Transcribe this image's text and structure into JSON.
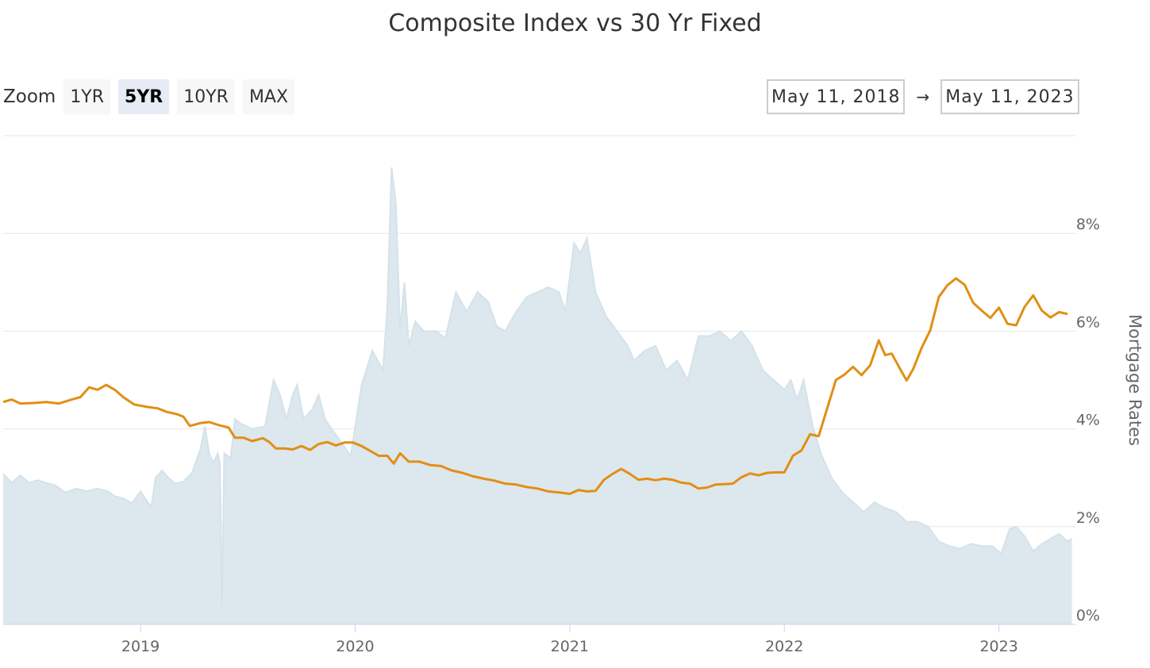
{
  "chart_data": {
    "type": "line",
    "title": "Composite Index vs 30 Yr Fixed",
    "zoom": {
      "label": "Zoom",
      "buttons": [
        {
          "label": "1YR",
          "active": false
        },
        {
          "label": "5YR",
          "active": true
        },
        {
          "label": "10YR",
          "active": false
        },
        {
          "label": "MAX",
          "active": false
        }
      ]
    },
    "range": {
      "from": "May 11, 2018",
      "arrow": "→",
      "to": "May 11, 2023"
    },
    "x_axis": {
      "start": 2018.36,
      "end": 2023.36,
      "ticks": [
        {
          "value": 2019,
          "label": "2019"
        },
        {
          "value": 2020,
          "label": "2020"
        },
        {
          "value": 2021,
          "label": "2021"
        },
        {
          "value": 2022,
          "label": "2022"
        },
        {
          "value": 2023,
          "label": "2023"
        }
      ]
    },
    "y_axis": {
      "label": "Mortgage Rates",
      "position": "right",
      "ylim": [
        0,
        10
      ],
      "ticks": [
        {
          "value": 0,
          "label": "0%"
        },
        {
          "value": 2,
          "label": "2%"
        },
        {
          "value": 4,
          "label": "4%"
        },
        {
          "value": 6,
          "label": "6%"
        },
        {
          "value": 8,
          "label": "8%"
        }
      ]
    },
    "grid": true,
    "legend": "none",
    "colors": {
      "area_fill": "#dde7ee",
      "area_line": "#d5e2ea",
      "rate_line": "#e08f13",
      "grid": "#e6e6e6"
    },
    "series": [
      {
        "type": "area",
        "points": [
          [
            2018.36,
            3.08
          ],
          [
            2018.4,
            2.9
          ],
          [
            2018.44,
            3.05
          ],
          [
            2018.48,
            2.9
          ],
          [
            2018.52,
            2.95
          ],
          [
            2018.56,
            2.9
          ],
          [
            2018.6,
            2.85
          ],
          [
            2018.65,
            2.7
          ],
          [
            2018.7,
            2.78
          ],
          [
            2018.75,
            2.72
          ],
          [
            2018.8,
            2.78
          ],
          [
            2018.85,
            2.72
          ],
          [
            2018.88,
            2.62
          ],
          [
            2018.92,
            2.58
          ],
          [
            2018.96,
            2.48
          ],
          [
            2019.0,
            2.72
          ],
          [
            2019.03,
            2.52
          ],
          [
            2019.05,
            2.4
          ],
          [
            2019.07,
            3.0
          ],
          [
            2019.1,
            3.15
          ],
          [
            2019.13,
            3.0
          ],
          [
            2019.16,
            2.88
          ],
          [
            2019.2,
            2.92
          ],
          [
            2019.24,
            3.1
          ],
          [
            2019.28,
            3.6
          ],
          [
            2019.3,
            4.05
          ],
          [
            2019.32,
            3.5
          ],
          [
            2019.34,
            3.3
          ],
          [
            2019.36,
            3.5
          ],
          [
            2019.37,
            3.3
          ],
          [
            2019.38,
            0.35
          ],
          [
            2019.39,
            3.5
          ],
          [
            2019.42,
            3.4
          ],
          [
            2019.44,
            4.2
          ],
          [
            2019.47,
            4.1
          ],
          [
            2019.52,
            4.0
          ],
          [
            2019.58,
            4.05
          ],
          [
            2019.62,
            5.0
          ],
          [
            2019.65,
            4.7
          ],
          [
            2019.68,
            4.2
          ],
          [
            2019.71,
            4.7
          ],
          [
            2019.73,
            4.9
          ],
          [
            2019.76,
            4.2
          ],
          [
            2019.8,
            4.4
          ],
          [
            2019.83,
            4.7
          ],
          [
            2019.86,
            4.2
          ],
          [
            2019.89,
            4.0
          ],
          [
            2019.93,
            3.75
          ],
          [
            2019.98,
            3.45
          ],
          [
            2020.03,
            4.9
          ],
          [
            2020.08,
            5.6
          ],
          [
            2020.13,
            5.2
          ],
          [
            2020.15,
            6.5
          ],
          [
            2020.17,
            9.35
          ],
          [
            2020.19,
            8.6
          ],
          [
            2020.21,
            6.0
          ],
          [
            2020.23,
            7.0
          ],
          [
            2020.25,
            5.7
          ],
          [
            2020.28,
            6.2
          ],
          [
            2020.32,
            6.0
          ],
          [
            2020.38,
            6.0
          ],
          [
            2020.42,
            5.85
          ],
          [
            2020.47,
            6.8
          ],
          [
            2020.52,
            6.4
          ],
          [
            2020.57,
            6.8
          ],
          [
            2020.62,
            6.6
          ],
          [
            2020.66,
            6.1
          ],
          [
            2020.7,
            6.0
          ],
          [
            2020.75,
            6.4
          ],
          [
            2020.8,
            6.7
          ],
          [
            2020.85,
            6.8
          ],
          [
            2020.9,
            6.9
          ],
          [
            2020.95,
            6.8
          ],
          [
            2020.98,
            6.4
          ],
          [
            2021.02,
            7.8
          ],
          [
            2021.05,
            7.6
          ],
          [
            2021.08,
            7.9
          ],
          [
            2021.12,
            6.8
          ],
          [
            2021.17,
            6.3
          ],
          [
            2021.22,
            6.0
          ],
          [
            2021.27,
            5.7
          ],
          [
            2021.3,
            5.4
          ],
          [
            2021.35,
            5.6
          ],
          [
            2021.4,
            5.7
          ],
          [
            2021.45,
            5.2
          ],
          [
            2021.5,
            5.4
          ],
          [
            2021.55,
            5.0
          ],
          [
            2021.6,
            5.9
          ],
          [
            2021.65,
            5.9
          ],
          [
            2021.7,
            6.0
          ],
          [
            2021.75,
            5.8
          ],
          [
            2021.8,
            6.0
          ],
          [
            2021.85,
            5.7
          ],
          [
            2021.9,
            5.2
          ],
          [
            2021.95,
            5.0
          ],
          [
            2022.0,
            4.8
          ],
          [
            2022.03,
            5.0
          ],
          [
            2022.06,
            4.6
          ],
          [
            2022.09,
            5.0
          ],
          [
            2022.13,
            4.1
          ],
          [
            2022.17,
            3.5
          ],
          [
            2022.22,
            3.0
          ],
          [
            2022.27,
            2.7
          ],
          [
            2022.32,
            2.5
          ],
          [
            2022.37,
            2.3
          ],
          [
            2022.42,
            2.5
          ],
          [
            2022.46,
            2.4
          ],
          [
            2022.52,
            2.3
          ],
          [
            2022.57,
            2.1
          ],
          [
            2022.62,
            2.1
          ],
          [
            2022.67,
            2.0
          ],
          [
            2022.72,
            1.7
          ],
          [
            2022.77,
            1.6
          ],
          [
            2022.82,
            1.55
          ],
          [
            2022.87,
            1.65
          ],
          [
            2022.92,
            1.6
          ],
          [
            2022.97,
            1.6
          ],
          [
            2023.01,
            1.45
          ],
          [
            2023.05,
            1.95
          ],
          [
            2023.08,
            2.0
          ],
          [
            2023.12,
            1.8
          ],
          [
            2023.16,
            1.5
          ],
          [
            2023.2,
            1.65
          ],
          [
            2023.24,
            1.75
          ],
          [
            2023.28,
            1.85
          ],
          [
            2023.32,
            1.7
          ],
          [
            2023.34,
            1.75
          ]
        ]
      },
      {
        "type": "line",
        "points": [
          [
            2018.36,
            4.55
          ],
          [
            2018.4,
            4.6
          ],
          [
            2018.44,
            4.52
          ],
          [
            2018.5,
            4.53
          ],
          [
            2018.56,
            4.55
          ],
          [
            2018.62,
            4.52
          ],
          [
            2018.68,
            4.6
          ],
          [
            2018.72,
            4.65
          ],
          [
            2018.76,
            4.85
          ],
          [
            2018.8,
            4.8
          ],
          [
            2018.84,
            4.9
          ],
          [
            2018.88,
            4.8
          ],
          [
            2018.92,
            4.65
          ],
          [
            2018.97,
            4.5
          ],
          [
            2019.03,
            4.45
          ],
          [
            2019.08,
            4.42
          ],
          [
            2019.12,
            4.35
          ],
          [
            2019.17,
            4.3
          ],
          [
            2019.2,
            4.25
          ],
          [
            2019.23,
            4.06
          ],
          [
            2019.28,
            4.12
          ],
          [
            2019.32,
            4.14
          ],
          [
            2019.37,
            4.07
          ],
          [
            2019.41,
            4.03
          ],
          [
            2019.44,
            3.82
          ],
          [
            2019.48,
            3.82
          ],
          [
            2019.52,
            3.75
          ],
          [
            2019.57,
            3.81
          ],
          [
            2019.6,
            3.73
          ],
          [
            2019.63,
            3.6
          ],
          [
            2019.67,
            3.6
          ],
          [
            2019.71,
            3.58
          ],
          [
            2019.75,
            3.65
          ],
          [
            2019.79,
            3.57
          ],
          [
            2019.83,
            3.69
          ],
          [
            2019.87,
            3.73
          ],
          [
            2019.91,
            3.66
          ],
          [
            2019.95,
            3.72
          ],
          [
            2019.99,
            3.72
          ],
          [
            2020.03,
            3.65
          ],
          [
            2020.07,
            3.55
          ],
          [
            2020.11,
            3.45
          ],
          [
            2020.15,
            3.45
          ],
          [
            2020.18,
            3.29
          ],
          [
            2020.21,
            3.5
          ],
          [
            2020.25,
            3.33
          ],
          [
            2020.3,
            3.33
          ],
          [
            2020.35,
            3.26
          ],
          [
            2020.4,
            3.24
          ],
          [
            2020.45,
            3.15
          ],
          [
            2020.5,
            3.1
          ],
          [
            2020.55,
            3.03
          ],
          [
            2020.6,
            2.98
          ],
          [
            2020.65,
            2.94
          ],
          [
            2020.7,
            2.88
          ],
          [
            2020.75,
            2.86
          ],
          [
            2020.8,
            2.81
          ],
          [
            2020.85,
            2.78
          ],
          [
            2020.9,
            2.72
          ],
          [
            2020.95,
            2.7
          ],
          [
            2021.0,
            2.67
          ],
          [
            2021.04,
            2.75
          ],
          [
            2021.08,
            2.72
          ],
          [
            2021.12,
            2.73
          ],
          [
            2021.16,
            2.96
          ],
          [
            2021.2,
            3.08
          ],
          [
            2021.24,
            3.18
          ],
          [
            2021.28,
            3.08
          ],
          [
            2021.32,
            2.96
          ],
          [
            2021.36,
            2.98
          ],
          [
            2021.4,
            2.95
          ],
          [
            2021.44,
            2.98
          ],
          [
            2021.48,
            2.96
          ],
          [
            2021.52,
            2.9
          ],
          [
            2021.56,
            2.88
          ],
          [
            2021.6,
            2.78
          ],
          [
            2021.64,
            2.8
          ],
          [
            2021.68,
            2.86
          ],
          [
            2021.72,
            2.87
          ],
          [
            2021.76,
            2.88
          ],
          [
            2021.8,
            3.01
          ],
          [
            2021.84,
            3.09
          ],
          [
            2021.88,
            3.05
          ],
          [
            2021.92,
            3.1
          ],
          [
            2021.96,
            3.11
          ],
          [
            2022.0,
            3.11
          ],
          [
            2022.04,
            3.45
          ],
          [
            2022.08,
            3.56
          ],
          [
            2022.12,
            3.89
          ],
          [
            2022.16,
            3.85
          ],
          [
            2022.2,
            4.42
          ],
          [
            2022.24,
            5.0
          ],
          [
            2022.28,
            5.11
          ],
          [
            2022.32,
            5.27
          ],
          [
            2022.36,
            5.1
          ],
          [
            2022.4,
            5.3
          ],
          [
            2022.44,
            5.81
          ],
          [
            2022.47,
            5.51
          ],
          [
            2022.5,
            5.54
          ],
          [
            2022.54,
            5.22
          ],
          [
            2022.57,
            4.99
          ],
          [
            2022.6,
            5.22
          ],
          [
            2022.64,
            5.66
          ],
          [
            2022.68,
            6.02
          ],
          [
            2022.72,
            6.7
          ],
          [
            2022.76,
            6.94
          ],
          [
            2022.8,
            7.08
          ],
          [
            2022.84,
            6.95
          ],
          [
            2022.88,
            6.58
          ],
          [
            2022.92,
            6.42
          ],
          [
            2022.96,
            6.27
          ],
          [
            2023.0,
            6.48
          ],
          [
            2023.04,
            6.15
          ],
          [
            2023.08,
            6.12
          ],
          [
            2023.12,
            6.5
          ],
          [
            2023.16,
            6.73
          ],
          [
            2023.2,
            6.42
          ],
          [
            2023.24,
            6.28
          ],
          [
            2023.28,
            6.39
          ],
          [
            2023.32,
            6.35
          ]
        ]
      }
    ]
  }
}
